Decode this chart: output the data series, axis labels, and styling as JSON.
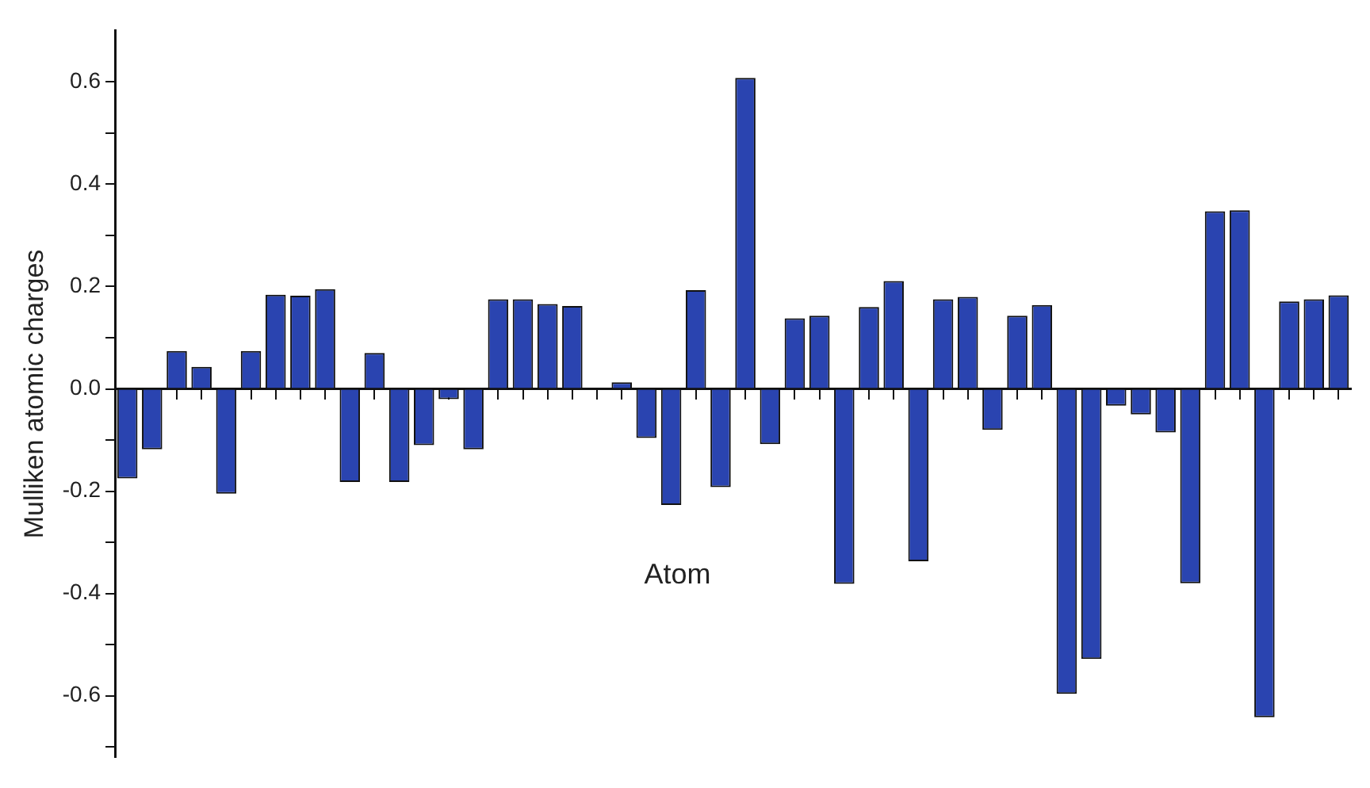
{
  "chart_data": {
    "type": "bar",
    "xlabel": "Atom",
    "ylabel": "Mulliken atomic charges",
    "categories": [
      null,
      null,
      null,
      null,
      null,
      null,
      null,
      null,
      null,
      null,
      null,
      null,
      null,
      null,
      null,
      null,
      null,
      null,
      null,
      null,
      null,
      null,
      null,
      null,
      null,
      null,
      null,
      null,
      null,
      null,
      null,
      null,
      null,
      null,
      null,
      null,
      null,
      null,
      null,
      null,
      null,
      null,
      null,
      null,
      null,
      null,
      null,
      null,
      null,
      null
    ],
    "values": [
      -0.175,
      -0.118,
      0.074,
      0.043,
      -0.205,
      0.074,
      0.184,
      0.182,
      0.195,
      -0.182,
      0.07,
      -0.182,
      -0.11,
      -0.02,
      -0.118,
      0.175,
      0.175,
      0.166,
      0.162,
      0,
      0.013,
      -0.096,
      -0.227,
      0.193,
      -0.192,
      0.608,
      -0.108,
      0.138,
      0.143,
      -0.381,
      0.16,
      0.211,
      -0.337,
      0.175,
      0.18,
      -0.08,
      0.143,
      0.164,
      -0.596,
      -0.528,
      -0.033,
      -0.05,
      -0.085,
      -0.38,
      0.347,
      0.349,
      -0.642,
      0.171,
      0.175,
      0.183
    ],
    "color": "#2a44b0",
    "ylim": [
      -0.72,
      0.7
    ],
    "yticks": [
      {
        "value": -0.7,
        "label": null
      },
      {
        "value": -0.6,
        "label": "-0.6"
      },
      {
        "value": -0.5,
        "label": null
      },
      {
        "value": -0.4,
        "label": "-0.4"
      },
      {
        "value": -0.3,
        "label": null
      },
      {
        "value": -0.2,
        "label": "-0.2"
      },
      {
        "value": -0.1,
        "label": null
      },
      {
        "value": 0,
        "label": "0.0"
      },
      {
        "value": 0.1,
        "label": null
      },
      {
        "value": 0.2,
        "label": "0.2"
      },
      {
        "value": 0.3,
        "label": null
      },
      {
        "value": 0.4,
        "label": "0.4"
      },
      {
        "value": 0.5,
        "label": null
      },
      {
        "value": 0.6,
        "label": "0.6"
      }
    ],
    "legend": false
  }
}
